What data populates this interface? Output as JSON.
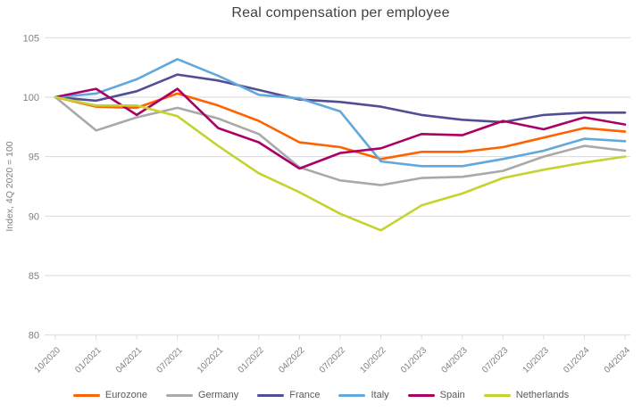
{
  "title": "Real compensation per employee",
  "y_axis": {
    "label": "Index, 4Q 2020 = 100",
    "ticks": [
      105,
      100,
      95,
      90,
      85,
      80
    ]
  },
  "x_axis": {
    "categories": [
      "10/2020",
      "01/2021",
      "04/2021",
      "07/2021",
      "10/2021",
      "01/2022",
      "04/2022",
      "07/2022",
      "10/2022",
      "01/2023",
      "04/2023",
      "07/2023",
      "10/2023",
      "01/2024",
      "04/2024"
    ]
  },
  "colors": {
    "grid": "#d9d9d9",
    "axis_text": "#808080",
    "title_text": "#414141",
    "legend_text": "#595959"
  },
  "chart_data": {
    "type": "line",
    "title": "Real compensation per employee",
    "ylabel": "Index, 4Q 2020 = 100",
    "ylim": [
      80,
      105
    ],
    "ytick_step": 5,
    "grid": true,
    "legend_position": "bottom",
    "categories": [
      "10/2020",
      "01/2021",
      "04/2021",
      "07/2021",
      "10/2021",
      "01/2022",
      "04/2022",
      "07/2022",
      "10/2022",
      "01/2023",
      "04/2023",
      "07/2023",
      "10/2023",
      "01/2024",
      "04/2024"
    ],
    "series": [
      {
        "name": "Eurozone",
        "color": "#FF6200",
        "values": [
          100,
          99.2,
          99.1,
          100.3,
          99.3,
          98.0,
          96.2,
          95.8,
          94.8,
          95.4,
          95.4,
          95.8,
          96.6,
          97.4,
          97.1
        ]
      },
      {
        "name": "Germany",
        "color": "#A9A9A9",
        "values": [
          100,
          97.2,
          98.3,
          99.1,
          98.2,
          96.9,
          94.1,
          93.0,
          92.6,
          93.2,
          93.3,
          93.8,
          95.0,
          95.9,
          95.5
        ]
      },
      {
        "name": "France",
        "color": "#514E96",
        "values": [
          100,
          99.7,
          100.5,
          101.9,
          101.4,
          100.6,
          99.8,
          99.6,
          99.2,
          98.5,
          98.1,
          97.9,
          98.5,
          98.7,
          98.7
        ]
      },
      {
        "name": "Italy",
        "color": "#62A8DC",
        "values": [
          100,
          100.3,
          101.5,
          103.2,
          101.8,
          100.2,
          99.9,
          98.8,
          94.6,
          94.2,
          94.2,
          94.8,
          95.5,
          96.5,
          96.3
        ]
      },
      {
        "name": "Spain",
        "color": "#AB0066",
        "values": [
          100,
          100.7,
          98.5,
          100.7,
          97.4,
          96.2,
          94.0,
          95.3,
          95.7,
          96.9,
          96.8,
          98.0,
          97.3,
          98.3,
          97.7
        ]
      },
      {
        "name": "Netherlands",
        "color": "#C4D32E",
        "values": [
          100,
          99.3,
          99.3,
          98.4,
          95.9,
          93.6,
          92.0,
          90.2,
          88.8,
          90.9,
          91.9,
          93.2,
          93.9,
          94.5,
          95.0
        ]
      }
    ]
  }
}
